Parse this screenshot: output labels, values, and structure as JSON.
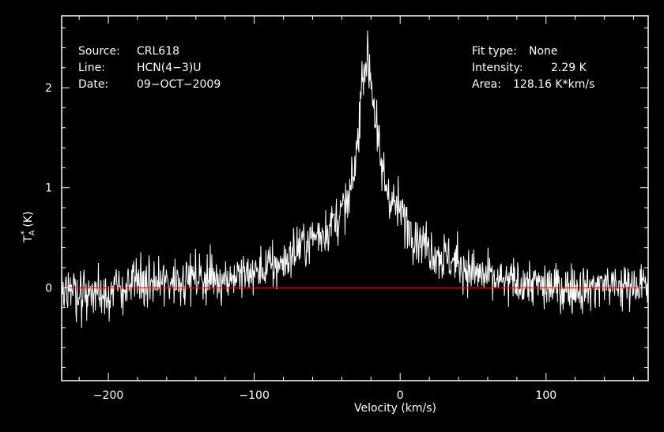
{
  "info": {
    "source_label": "Source:",
    "source_value": "CRL618",
    "line_label": "Line:",
    "line_value": "HCN(4−3)U",
    "date_label": "Date:",
    "date_value": "09−OCT−2009",
    "fit_label": "Fit type:",
    "fit_value": "None",
    "intensity_label": "Intensity:",
    "intensity_value": "2.29 K",
    "area_label": "Area:",
    "area_value": "128.16 K*km/s"
  },
  "colors": {
    "background": "#000000",
    "spectrum": "#ffffff",
    "baseline": "#ff0000",
    "axes": "#ffffff"
  },
  "chart_data": {
    "type": "line",
    "xlabel": "Velocity (km/s)",
    "ylabel": "T_A^* (K)",
    "xlim": [
      -232,
      170
    ],
    "ylim": [
      -0.93,
      2.72
    ],
    "xticks": [
      -200,
      -100,
      0,
      100
    ],
    "xtick_labels": [
      "−200",
      "−100",
      "0",
      "100"
    ],
    "yticks": [
      0,
      1,
      2
    ],
    "ytick_labels": [
      "0",
      "1",
      "2"
    ],
    "baseline_y": 0,
    "grid": false,
    "series": [
      {
        "x": [
          -230,
          -220,
          -210,
          -200,
          -190,
          -180,
          -170,
          -160,
          -150,
          -140,
          -130,
          -120,
          -110,
          -100,
          -90,
          -80,
          -70,
          -60,
          -50,
          -40,
          -35,
          -30,
          -27,
          -25,
          -23,
          -21,
          -19,
          -17,
          -15,
          -13,
          -10,
          -5,
          0,
          10,
          20,
          30,
          40,
          50,
          60,
          70,
          80,
          90,
          100,
          110,
          120,
          130,
          140,
          150,
          160,
          170
        ],
        "y": [
          0.0,
          -0.05,
          -0.05,
          -0.05,
          0.0,
          0.05,
          0.05,
          0.05,
          0.1,
          0.1,
          0.1,
          0.1,
          0.12,
          0.15,
          0.2,
          0.25,
          0.4,
          0.5,
          0.6,
          0.75,
          0.85,
          1.3,
          1.9,
          2.25,
          2.3,
          2.2,
          2.0,
          1.7,
          1.4,
          1.2,
          1.05,
          0.85,
          0.75,
          0.55,
          0.4,
          0.3,
          0.25,
          0.15,
          0.1,
          0.05,
          0.05,
          0.05,
          0.0,
          0.0,
          0.0,
          0.0,
          0.05,
          0.0,
          0.05,
          0.0
        ],
        "noise_rms": 0.2
      }
    ]
  }
}
